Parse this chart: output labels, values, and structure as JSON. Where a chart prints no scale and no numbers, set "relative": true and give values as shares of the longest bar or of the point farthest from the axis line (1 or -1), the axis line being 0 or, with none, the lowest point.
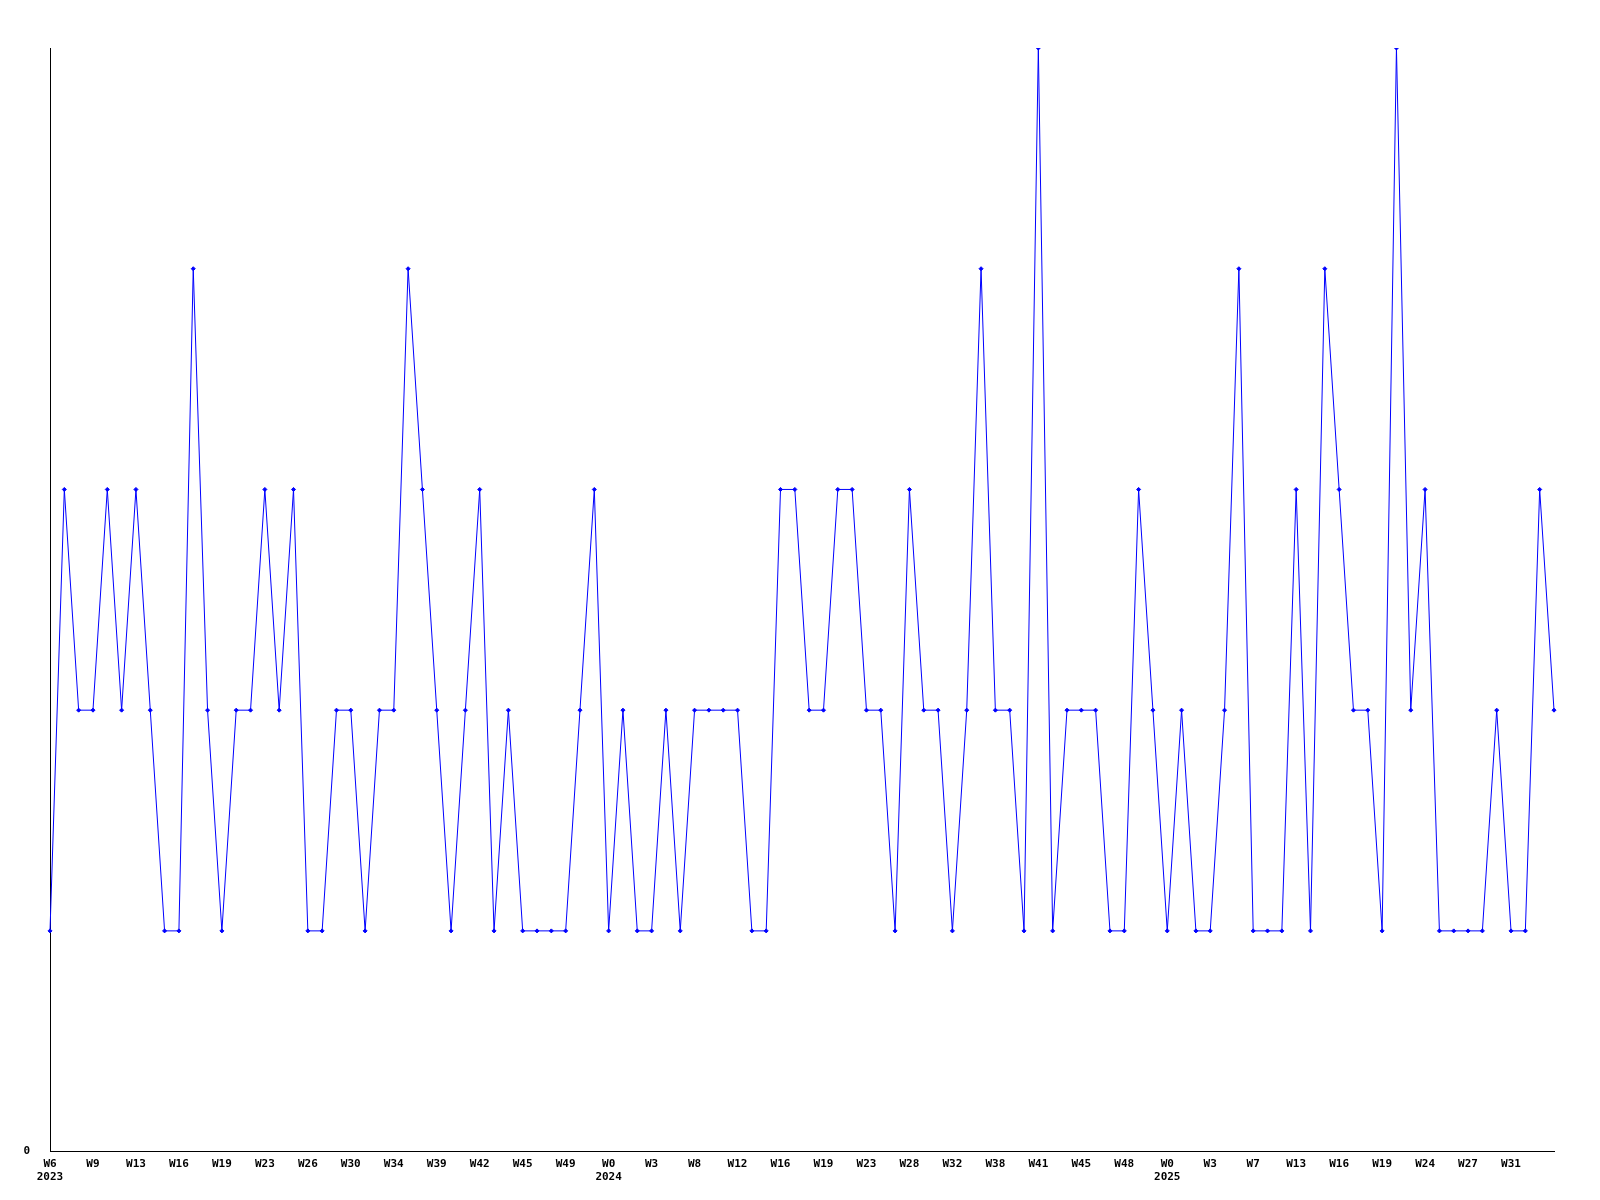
{
  "chart_data": {
    "type": "line",
    "relative": true,
    "annotations": [
      "0"
    ],
    "categories": [
      "W6\n2023",
      null,
      null,
      "W9",
      null,
      null,
      "W13",
      null,
      null,
      "W16",
      null,
      null,
      "W19",
      null,
      null,
      "W23",
      null,
      null,
      "W26",
      null,
      null,
      "W30",
      null,
      null,
      "W34",
      null,
      null,
      "W39",
      null,
      null,
      "W42",
      null,
      null,
      "W45",
      null,
      null,
      "W49",
      null,
      null,
      "W0\n2024",
      null,
      null,
      "W3",
      null,
      null,
      "W8",
      null,
      null,
      "W12",
      null,
      null,
      "W16",
      null,
      null,
      "W19",
      null,
      null,
      "W23",
      null,
      null,
      "W28",
      null,
      null,
      "W32",
      null,
      null,
      "W38",
      null,
      null,
      "W41",
      null,
      null,
      "W45",
      null,
      null,
      "W48",
      null,
      null,
      "W0\n2025",
      null,
      null,
      "W3",
      null,
      null,
      "W7",
      null,
      null,
      "W13",
      null,
      null,
      "W16",
      null,
      null,
      "W19",
      null,
      null,
      "W24",
      null,
      null,
      "W27",
      null,
      null,
      "W31",
      null,
      null,
      null
    ],
    "series": [
      {
        "color": "#0000ff",
        "values": [
          0.2,
          0.6,
          0.4,
          0.4,
          0.6,
          0.4,
          0.6,
          0.4,
          0.2,
          0.2,
          0.8,
          0.4,
          0.2,
          0.4,
          0.4,
          0.6,
          0.4,
          0.6,
          0.2,
          0.2,
          0.4,
          0.4,
          0.2,
          0.4,
          0.4,
          0.8,
          0.6,
          0.4,
          0.2,
          0.4,
          0.6,
          0.2,
          0.4,
          0.2,
          0.2,
          0.2,
          0.2,
          0.4,
          0.6,
          0.2,
          0.4,
          0.2,
          0.2,
          0.4,
          0.2,
          0.4,
          0.4,
          0.4,
          0.4,
          0.2,
          0.2,
          0.6,
          0.6,
          0.4,
          0.4,
          0.6,
          0.6,
          0.4,
          0.4,
          0.2,
          0.6,
          0.4,
          0.4,
          0.2,
          0.4,
          0.8,
          0.4,
          0.4,
          0.2,
          1,
          0.2,
          0.4,
          0.4,
          0.4,
          0.2,
          0.2,
          0.6,
          0.4,
          0.2,
          0.4,
          0.2,
          0.2,
          0.4,
          0.8,
          0.2,
          0.2,
          0.2,
          0.6,
          0.2,
          0.8,
          0.6,
          0.4,
          0.4,
          0.2,
          1,
          0.4,
          0.6,
          0.2,
          0.2,
          0.2,
          0.2,
          0.4,
          0.2,
          0.2,
          0.6,
          0.4
        ]
      }
    ],
    "marker": "diamond",
    "line_style": "solid",
    "grid": false,
    "legend": false
  }
}
